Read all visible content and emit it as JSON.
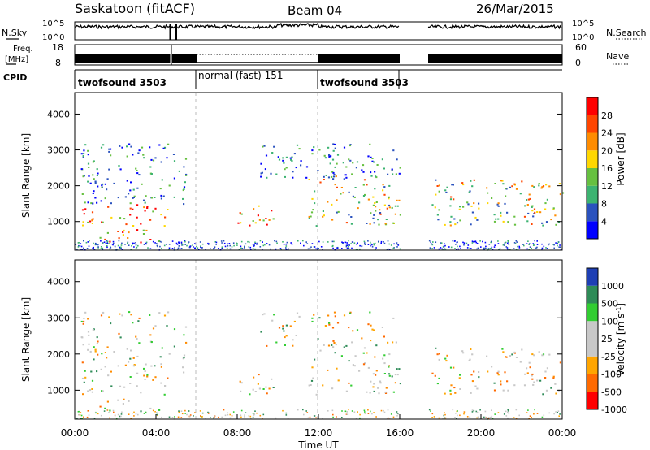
{
  "header": {
    "station": "Saskatoon (fitACF)",
    "beam": "Beam 04",
    "date": "26/Mar/2015"
  },
  "top_panels": {
    "nsky_label": "N.Sky",
    "nsearch_label": "N.Search",
    "nsky_ticks": [
      "10^5",
      "10^0"
    ],
    "nsearch_ticks": [
      "10^5",
      "10^0"
    ],
    "freq_label_line1": "Freq.",
    "freq_label_line2": "[MHz]",
    "freq_ticks": [
      "18",
      "8"
    ],
    "nave_label": "Nave",
    "nave_ticks": [
      "60",
      "0"
    ],
    "cpid_label": "CPID",
    "cpid_segments": [
      {
        "label": "twofsound 3503",
        "start": 0,
        "end": 6
      },
      {
        "label": "normal (fast) 151",
        "start": 6,
        "end": 12
      },
      {
        "label": "twofsound 3503",
        "start": 12,
        "end": 16
      }
    ]
  },
  "chart_data": [
    {
      "type": "heatmap",
      "panel": "power",
      "ylabel": "Slant Range [km]",
      "yticks": [
        "1000",
        "2000",
        "3000",
        "4000"
      ],
      "ylim": [
        200,
        4600
      ],
      "colorbar_label": "Power [dB]",
      "colorbar_ticks": [
        "4",
        "8",
        "12",
        "16",
        "20",
        "24",
        "28"
      ],
      "colorbar_colors": [
        "#0000ff",
        "#2a52be",
        "#3cb371",
        "#66c040",
        "#ffd700",
        "#ff8c00",
        "#ff4500",
        "#ff0000"
      ],
      "data_gaps_hours": [
        [
          16,
          17.4
        ]
      ],
      "scatter_bands": [
        {
          "t0": 0.3,
          "t1": 4.6,
          "r0": 900,
          "r1": 1500,
          "level": "high"
        },
        {
          "t0": 1.0,
          "t1": 4.2,
          "r0": 400,
          "r1": 800,
          "level": "high"
        },
        {
          "t0": 0.3,
          "t1": 5.5,
          "r0": 1500,
          "r1": 3200,
          "level": "low"
        },
        {
          "t0": 7.8,
          "t1": 9.8,
          "r0": 900,
          "r1": 1500,
          "level": "high"
        },
        {
          "t0": 11.5,
          "t1": 16.0,
          "r0": 900,
          "r1": 2300,
          "level": "medium"
        },
        {
          "t0": 9.0,
          "t1": 16.0,
          "r0": 2200,
          "r1": 3200,
          "level": "low"
        },
        {
          "t0": 17.4,
          "t1": 24.0,
          "r0": 900,
          "r1": 2200,
          "level": "medium"
        }
      ]
    },
    {
      "type": "heatmap",
      "panel": "velocity",
      "ylabel": "Slant Range [km]",
      "yticks": [
        "1000",
        "2000",
        "3000",
        "4000"
      ],
      "ylim": [
        200,
        4600
      ],
      "colorbar_label": "Velocity [m s",
      "colorbar_label_sup": "-1",
      "colorbar_label_end": "]",
      "colorbar_ticks": [
        "1000",
        "500",
        "100",
        "25",
        "-25",
        "-100",
        "-500",
        "-1000"
      ],
      "colorbar_colors": [
        "#1e3fb4",
        "#2e8b57",
        "#32cd32",
        "#c8c8c8",
        "#c8c8c8",
        "#ffa500",
        "#ff6a00",
        "#ff0000"
      ],
      "data_gaps_hours": [
        [
          16,
          17.4
        ]
      ],
      "xlabel": "Time UT",
      "xticks": [
        "00:00",
        "04:00",
        "08:00",
        "12:00",
        "16:00",
        "20:00",
        "00:00"
      ],
      "xlim": [
        0,
        24
      ]
    }
  ]
}
